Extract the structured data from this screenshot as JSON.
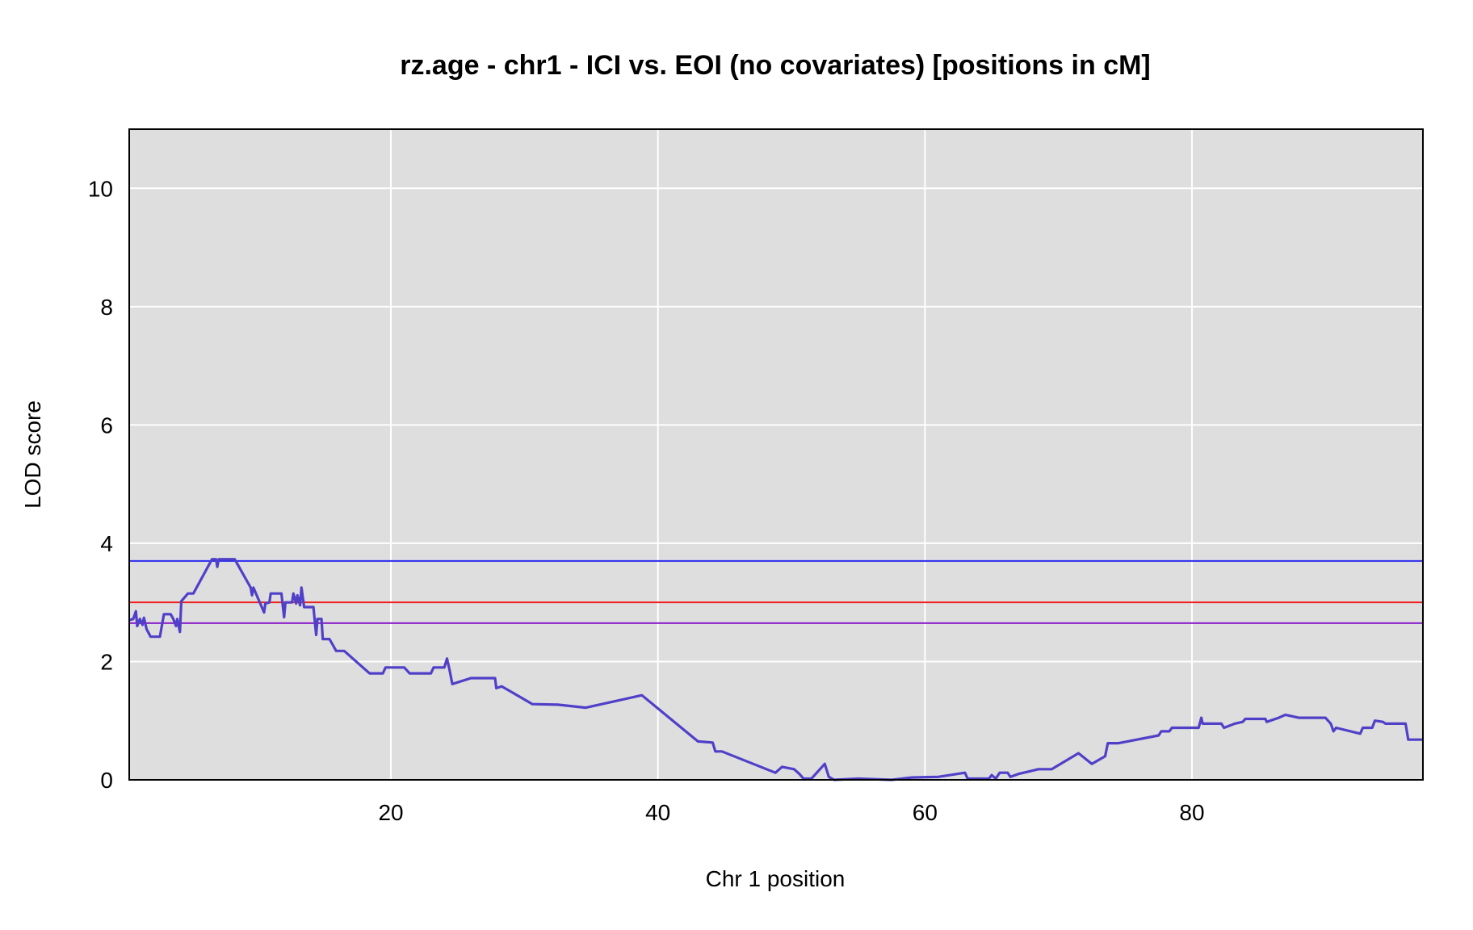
{
  "chart_data": {
    "type": "line",
    "title": "rz.age - chr1 - ICI vs. EOI (no covariates) [positions in cM]",
    "xlabel": "Chr 1 position",
    "ylabel": "LOD score",
    "xlim": [
      0.4,
      97.3
    ],
    "ylim": [
      0,
      11
    ],
    "xticks": [
      20,
      40,
      60,
      80
    ],
    "yticks": [
      0,
      2,
      4,
      6,
      8,
      10
    ],
    "grid": true,
    "legend": "none",
    "colors": {
      "panel_bg": "#dedede",
      "grid": "#ffffff",
      "series": "#5040c8",
      "threshold_blue": "#2a2af0",
      "threshold_red": "#ee2020",
      "threshold_purple": "#8a20c8"
    },
    "thresholds": [
      {
        "value": 3.7,
        "color": "#2a2af0"
      },
      {
        "value": 3.0,
        "color": "#ee2020"
      },
      {
        "value": 2.65,
        "color": "#8a20c8"
      }
    ],
    "series": [
      {
        "points": [
          [
            0.4,
            2.7
          ],
          [
            0.7,
            2.72
          ],
          [
            0.9,
            2.85
          ],
          [
            1.0,
            2.6
          ],
          [
            1.2,
            2.72
          ],
          [
            1.4,
            2.62
          ],
          [
            1.5,
            2.74
          ],
          [
            1.7,
            2.55
          ],
          [
            2.0,
            2.42
          ],
          [
            2.7,
            2.42
          ],
          [
            3.0,
            2.8
          ],
          [
            3.5,
            2.8
          ],
          [
            3.7,
            2.72
          ],
          [
            3.9,
            2.6
          ],
          [
            4.0,
            2.72
          ],
          [
            4.2,
            2.5
          ],
          [
            4.3,
            3.02
          ],
          [
            4.8,
            3.15
          ],
          [
            5.2,
            3.15
          ],
          [
            6.0,
            3.48
          ],
          [
            6.6,
            3.73
          ],
          [
            6.9,
            3.73
          ],
          [
            7.0,
            3.6
          ],
          [
            7.1,
            3.73
          ],
          [
            8.3,
            3.73
          ],
          [
            9.5,
            3.25
          ],
          [
            9.6,
            3.12
          ],
          [
            9.7,
            3.25
          ],
          [
            10.5,
            2.83
          ],
          [
            10.6,
            2.98
          ],
          [
            10.9,
            3.0
          ],
          [
            11.0,
            3.15
          ],
          [
            11.8,
            3.15
          ],
          [
            12.0,
            2.75
          ],
          [
            12.1,
            3.0
          ],
          [
            12.6,
            3.0
          ],
          [
            12.7,
            3.15
          ],
          [
            12.9,
            2.98
          ],
          [
            13.0,
            3.12
          ],
          [
            13.2,
            2.95
          ],
          [
            13.3,
            3.25
          ],
          [
            13.5,
            2.92
          ],
          [
            14.2,
            2.92
          ],
          [
            14.4,
            2.45
          ],
          [
            14.5,
            2.72
          ],
          [
            14.8,
            2.72
          ],
          [
            14.9,
            2.38
          ],
          [
            15.4,
            2.38
          ],
          [
            15.9,
            2.18
          ],
          [
            16.5,
            2.18
          ],
          [
            18.4,
            1.8
          ],
          [
            19.4,
            1.8
          ],
          [
            19.6,
            1.9
          ],
          [
            21.0,
            1.9
          ],
          [
            21.4,
            1.8
          ],
          [
            23.0,
            1.8
          ],
          [
            23.2,
            1.9
          ],
          [
            24.0,
            1.9
          ],
          [
            24.2,
            2.05
          ],
          [
            24.4,
            1.85
          ],
          [
            24.6,
            1.62
          ],
          [
            26.0,
            1.72
          ],
          [
            27.8,
            1.72
          ],
          [
            27.9,
            1.55
          ],
          [
            28.3,
            1.58
          ],
          [
            30.6,
            1.28
          ],
          [
            32.5,
            1.27
          ],
          [
            34.6,
            1.22
          ],
          [
            38.8,
            1.43
          ],
          [
            43.0,
            0.65
          ],
          [
            44.1,
            0.63
          ],
          [
            44.3,
            0.48
          ],
          [
            44.8,
            0.48
          ],
          [
            48.8,
            0.12
          ],
          [
            49.3,
            0.22
          ],
          [
            50.2,
            0.18
          ],
          [
            50.6,
            0.1
          ],
          [
            50.9,
            0.02
          ],
          [
            51.5,
            0.02
          ],
          [
            52.5,
            0.27
          ],
          [
            52.8,
            0.05
          ],
          [
            53.2,
            0.0
          ],
          [
            55.0,
            0.02
          ],
          [
            57.5,
            0.0
          ],
          [
            59.0,
            0.04
          ],
          [
            61.0,
            0.05
          ],
          [
            63.0,
            0.12
          ],
          [
            63.2,
            0.02
          ],
          [
            64.8,
            0.02
          ],
          [
            65.0,
            0.08
          ],
          [
            65.3,
            0.02
          ],
          [
            65.6,
            0.12
          ],
          [
            66.2,
            0.12
          ],
          [
            66.4,
            0.05
          ],
          [
            67.0,
            0.1
          ],
          [
            68.5,
            0.18
          ],
          [
            69.5,
            0.18
          ],
          [
            71.5,
            0.45
          ],
          [
            72.5,
            0.27
          ],
          [
            73.5,
            0.4
          ],
          [
            73.7,
            0.62
          ],
          [
            74.5,
            0.62
          ],
          [
            77.5,
            0.75
          ],
          [
            77.7,
            0.82
          ],
          [
            78.3,
            0.82
          ],
          [
            78.5,
            0.88
          ],
          [
            80.5,
            0.88
          ],
          [
            80.7,
            1.05
          ],
          [
            80.8,
            0.95
          ],
          [
            82.2,
            0.95
          ],
          [
            82.4,
            0.88
          ],
          [
            83.2,
            0.95
          ],
          [
            83.8,
            0.98
          ],
          [
            84.0,
            1.03
          ],
          [
            85.5,
            1.03
          ],
          [
            85.6,
            0.98
          ],
          [
            86.5,
            1.05
          ],
          [
            87.0,
            1.1
          ],
          [
            88.0,
            1.05
          ],
          [
            90.0,
            1.05
          ],
          [
            90.4,
            0.95
          ],
          [
            90.6,
            0.82
          ],
          [
            90.8,
            0.88
          ],
          [
            92.6,
            0.78
          ],
          [
            92.8,
            0.88
          ],
          [
            93.5,
            0.88
          ],
          [
            93.7,
            1.0
          ],
          [
            94.3,
            0.98
          ],
          [
            94.5,
            0.95
          ],
          [
            96.0,
            0.95
          ],
          [
            96.2,
            0.68
          ],
          [
            97.3,
            0.68
          ]
        ]
      }
    ]
  }
}
